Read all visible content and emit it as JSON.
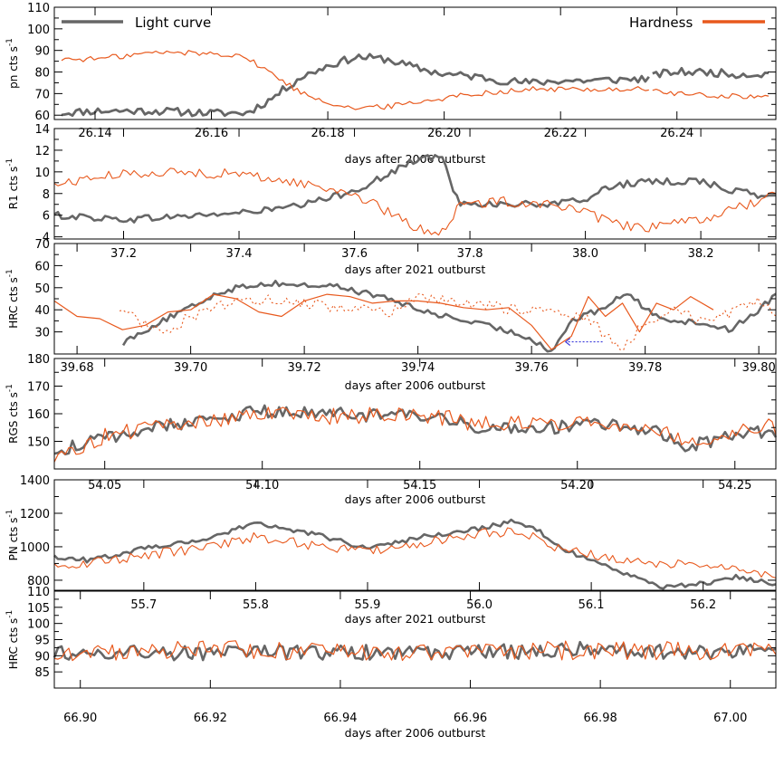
{
  "colors": {
    "light": "#666666",
    "hard": "#e8591d",
    "arrow": "#3b3bdb"
  },
  "legend": {
    "light_label": "Light curve",
    "hard_label": "Hardness"
  },
  "chart_data": [
    {
      "type": "line",
      "ylabel": "pn cts s",
      "xlabel": "days after 2006 outburst",
      "xlim": [
        26.133,
        26.257
      ],
      "ylim": [
        58,
        110
      ],
      "yticks": [
        60,
        70,
        80,
        90,
        100,
        110
      ],
      "xticks": [
        26.14,
        26.16,
        26.18,
        26.2,
        26.22,
        26.24
      ],
      "xticklabels": [
        "26.14",
        "26.16",
        "26.18",
        "26.20",
        "26.22",
        "26.24"
      ],
      "gaps": [
        26.2355
      ],
      "series": [
        {
          "name": "Light curve",
          "color": "light",
          "width": 2.8,
          "amp": 1.8,
          "x": [
            26.134,
            26.14,
            26.15,
            26.16,
            26.166,
            26.17,
            26.175,
            26.18,
            26.185,
            26.19,
            26.195,
            26.2,
            26.205,
            26.21,
            26.215,
            26.22,
            26.225,
            26.2355,
            26.2365,
            26.24,
            26.245,
            26.25,
            26.256
          ],
          "y": [
            61,
            62,
            62,
            61,
            61,
            67,
            77,
            83,
            87,
            86,
            82,
            79,
            78,
            76,
            75,
            76,
            76,
            77,
            79,
            80,
            80,
            79,
            79
          ]
        },
        {
          "name": "Hardness",
          "color": "hard",
          "width": 1.2,
          "amp": 1.3,
          "x": [
            26.134,
            26.14,
            26.15,
            26.155,
            26.165,
            26.17,
            26.175,
            26.18,
            26.185,
            26.19,
            26.195,
            26.2,
            26.205,
            26.21,
            26.215,
            26.22,
            26.225,
            26.2355,
            26.2365,
            26.24,
            26.245,
            26.25,
            26.256
          ],
          "y": [
            86,
            86,
            89,
            89,
            88,
            80,
            71,
            66,
            63,
            64,
            66,
            68,
            70,
            71,
            72,
            72,
            72,
            72,
            71,
            70,
            69,
            69,
            68
          ]
        }
      ]
    },
    {
      "type": "line",
      "ylabel": "R1 cts s",
      "xlabel": "days after 2021 outburst",
      "xlim": [
        37.08,
        38.33
      ],
      "ylim": [
        3.8,
        14
      ],
      "yticks": [
        4,
        6,
        8,
        10,
        12,
        14
      ],
      "xticks": [
        37.2,
        37.4,
        37.6,
        37.8,
        38.0,
        38.2
      ],
      "xticklabels": [
        "37.2",
        "37.4",
        "37.6",
        "37.8",
        "38.0",
        "38.2"
      ],
      "gaps": [],
      "series": [
        {
          "name": "Light curve",
          "color": "light",
          "width": 2.6,
          "amp": 0.32,
          "x": [
            37.08,
            37.2,
            37.4,
            37.5,
            37.55,
            37.6,
            37.65,
            37.7,
            37.75,
            37.78,
            37.85,
            37.95,
            38.0,
            38.05,
            38.1,
            38.2,
            38.25,
            38.33
          ],
          "y": [
            6,
            5.6,
            6.2,
            6.8,
            7.5,
            8.3,
            9.5,
            11,
            11.5,
            7.2,
            7,
            7,
            7.5,
            8.8,
            9,
            9.2,
            8.3,
            7.6
          ]
        },
        {
          "name": "Hardness",
          "color": "hard",
          "width": 1.1,
          "amp": 0.45,
          "x": [
            37.08,
            37.15,
            37.25,
            37.4,
            37.5,
            37.6,
            37.65,
            37.7,
            37.75,
            37.78,
            37.85,
            37.95,
            38.0,
            38.05,
            38.1,
            38.2,
            38.25,
            38.33
          ],
          "y": [
            8.8,
            9.5,
            10,
            9.8,
            9,
            8,
            6.5,
            5,
            4.3,
            6.8,
            7.3,
            7,
            6.2,
            5.2,
            4.8,
            5.5,
            6.5,
            7.8
          ]
        }
      ]
    },
    {
      "type": "line",
      "ylabel": "HRC cts s",
      "xlabel": "days after 2006 outburst",
      "xlim": [
        39.676,
        39.803
      ],
      "ylim": [
        20,
        70
      ],
      "yticks": [
        30,
        40,
        50,
        60,
        70
      ],
      "xticks": [
        39.68,
        39.7,
        39.72,
        39.74,
        39.76,
        39.78,
        39.8
      ],
      "xticklabels": [
        "39.68",
        "39.70",
        "39.72",
        "39.74",
        "39.76",
        "39.78",
        "39.80"
      ],
      "gaps": [],
      "series": [
        {
          "name": "Light curve",
          "color": "light",
          "width": 2.6,
          "amp": 1.3,
          "x": [
            39.688,
            39.69,
            39.695,
            39.7,
            39.705,
            39.71,
            39.715,
            39.72,
            39.725,
            39.73,
            39.735,
            39.74,
            39.745,
            39.75,
            39.755,
            39.76,
            39.7635,
            39.767,
            39.772,
            39.777,
            39.78,
            39.785,
            39.79,
            39.795,
            39.8,
            39.803
          ],
          "y": [
            25,
            28,
            35,
            41,
            48,
            51,
            52,
            51,
            51,
            48,
            45,
            40,
            37,
            34,
            31,
            27,
            21,
            35,
            40,
            48,
            40,
            35,
            34,
            31,
            40,
            47
          ]
        },
        {
          "name": "Hardness",
          "color": "hard",
          "width": 1.2,
          "amp": 0,
          "x": [
            39.676,
            39.68,
            39.684,
            39.688,
            39.692,
            39.696,
            39.7,
            39.704,
            39.708,
            39.712,
            39.716,
            39.72,
            39.724,
            39.728,
            39.732,
            39.736,
            39.74,
            39.744,
            39.748,
            39.752,
            39.756,
            39.76,
            39.7635,
            39.767,
            39.77,
            39.773,
            39.776,
            39.779,
            39.782,
            39.785,
            39.788,
            39.792
          ],
          "y": [
            44,
            37,
            36,
            31,
            33,
            39,
            40,
            47,
            45,
            39,
            37,
            44,
            47,
            46,
            43,
            44,
            44,
            43,
            41,
            40,
            41,
            33,
            22,
            28,
            46,
            37,
            43,
            30,
            43,
            40,
            46,
            40
          ]
        },
        {
          "name": "",
          "color": "hard",
          "width": 1.1,
          "amp": 2.6,
          "dash": "2,3",
          "x": [
            39.687,
            39.69,
            39.695,
            39.7,
            39.705,
            39.71,
            39.72,
            39.73,
            39.735,
            39.74,
            39.75,
            39.76,
            39.765,
            39.77,
            39.7755,
            39.78,
            39.785,
            39.79,
            39.795,
            39.8,
            39.803
          ],
          "y": [
            43,
            36,
            30,
            37,
            41,
            45,
            43,
            40,
            38,
            46,
            42,
            40,
            38,
            36,
            22,
            34,
            41,
            35,
            38,
            44,
            39
          ]
        }
      ]
    },
    {
      "type": "line",
      "ylabel": "RGS cts s",
      "xlabel": "days after 2006 outburst",
      "xlim": [
        54.034,
        54.263
      ],
      "ylim": [
        140,
        180
      ],
      "yticks": [
        150,
        160,
        170,
        180
      ],
      "xticks": [
        54.05,
        54.1,
        54.15,
        54.2,
        54.25
      ],
      "xticklabels": [
        "54.05",
        "54.10",
        "54.15",
        "54.20",
        "54.25"
      ],
      "gaps": [],
      "series": [
        {
          "name": "Light curve",
          "color": "light",
          "width": 2.6,
          "amp": 2.4,
          "x": [
            54.034,
            54.04,
            54.05,
            54.07,
            54.09,
            54.1,
            54.12,
            54.15,
            54.17,
            54.19,
            54.21,
            54.225,
            54.235,
            54.245,
            54.255,
            54.263
          ],
          "y": [
            146,
            148,
            151,
            156,
            159,
            161,
            160,
            159,
            155,
            155,
            156,
            154,
            148,
            151,
            154,
            153
          ]
        },
        {
          "name": "Hardness",
          "color": "hard",
          "width": 1.2,
          "amp": 3.0,
          "x": [
            54.034,
            54.04,
            54.05,
            54.07,
            54.09,
            54.1,
            54.12,
            54.15,
            54.17,
            54.19,
            54.21,
            54.225,
            54.235,
            54.245,
            54.255,
            54.263
          ],
          "y": [
            143,
            147,
            152,
            156,
            158,
            160,
            159,
            160,
            156,
            157,
            157,
            155,
            150,
            152,
            156,
            155
          ]
        }
      ]
    },
    {
      "type": "line",
      "ylabel": "PN cts s",
      "xlabel": "days after 2021 outburst",
      "xlim": [
        55.62,
        56.265
      ],
      "ylim": [
        740,
        1400
      ],
      "yticks": [
        800,
        1000,
        1200,
        1400
      ],
      "xticks": [
        55.7,
        55.8,
        55.9,
        56.0,
        56.1,
        56.2
      ],
      "xticklabels": [
        "55.7",
        "55.8",
        "55.9",
        "56.0",
        "56.1",
        "56.2"
      ],
      "gaps": [],
      "series": [
        {
          "name": "Light curve",
          "color": "light",
          "width": 2.6,
          "amp": 14,
          "x": [
            55.62,
            55.65,
            55.7,
            55.75,
            55.8,
            55.85,
            55.9,
            55.95,
            56.0,
            56.03,
            56.05,
            56.07,
            56.1,
            56.13,
            56.16,
            56.2,
            56.23,
            56.265
          ],
          "y": [
            940,
            920,
            990,
            1040,
            1140,
            1080,
            990,
            1060,
            1110,
            1150,
            1110,
            1000,
            920,
            840,
            760,
            780,
            820,
            780
          ]
        },
        {
          "name": "Hardness",
          "color": "hard",
          "width": 1.1,
          "amp": 30,
          "x": [
            55.62,
            55.65,
            55.7,
            55.75,
            55.8,
            55.85,
            55.9,
            55.95,
            56.0,
            56.03,
            56.05,
            56.07,
            56.1,
            56.13,
            56.16,
            56.2,
            56.23,
            56.265
          ],
          "y": [
            880,
            900,
            950,
            990,
            1060,
            1010,
            980,
            1020,
            1080,
            1090,
            1060,
            990,
            950,
            920,
            900,
            900,
            880,
            830
          ]
        }
      ]
    },
    {
      "type": "line",
      "ylabel": "HRC cts s",
      "xlabel": "days after 2006 outburst",
      "xlim": [
        66.896,
        67.007
      ],
      "ylim": [
        80,
        110
      ],
      "yticks": [
        85,
        90,
        95,
        100,
        105,
        110
      ],
      "xticks": [
        66.9,
        66.92,
        66.94,
        66.96,
        66.98,
        67.0
      ],
      "xticklabels": [
        "66.90",
        "66.92",
        "66.94",
        "66.96",
        "66.98",
        "67.00"
      ],
      "gaps": [],
      "series": [
        {
          "name": "Light curve",
          "color": "light",
          "width": 2.6,
          "amp": 2.4,
          "x": [
            66.896,
            66.92,
            66.94,
            66.96,
            66.98,
            67.0,
            67.007
          ],
          "y": [
            91,
            91,
            91,
            91,
            92,
            91,
            92
          ]
        },
        {
          "name": "Hardness",
          "color": "hard",
          "width": 1.2,
          "amp": 3.0,
          "x": [
            66.896,
            66.92,
            66.94,
            66.96,
            66.98,
            67.0,
            67.007
          ],
          "y": [
            91,
            92,
            91,
            91,
            92,
            91,
            91
          ]
        }
      ]
    }
  ]
}
